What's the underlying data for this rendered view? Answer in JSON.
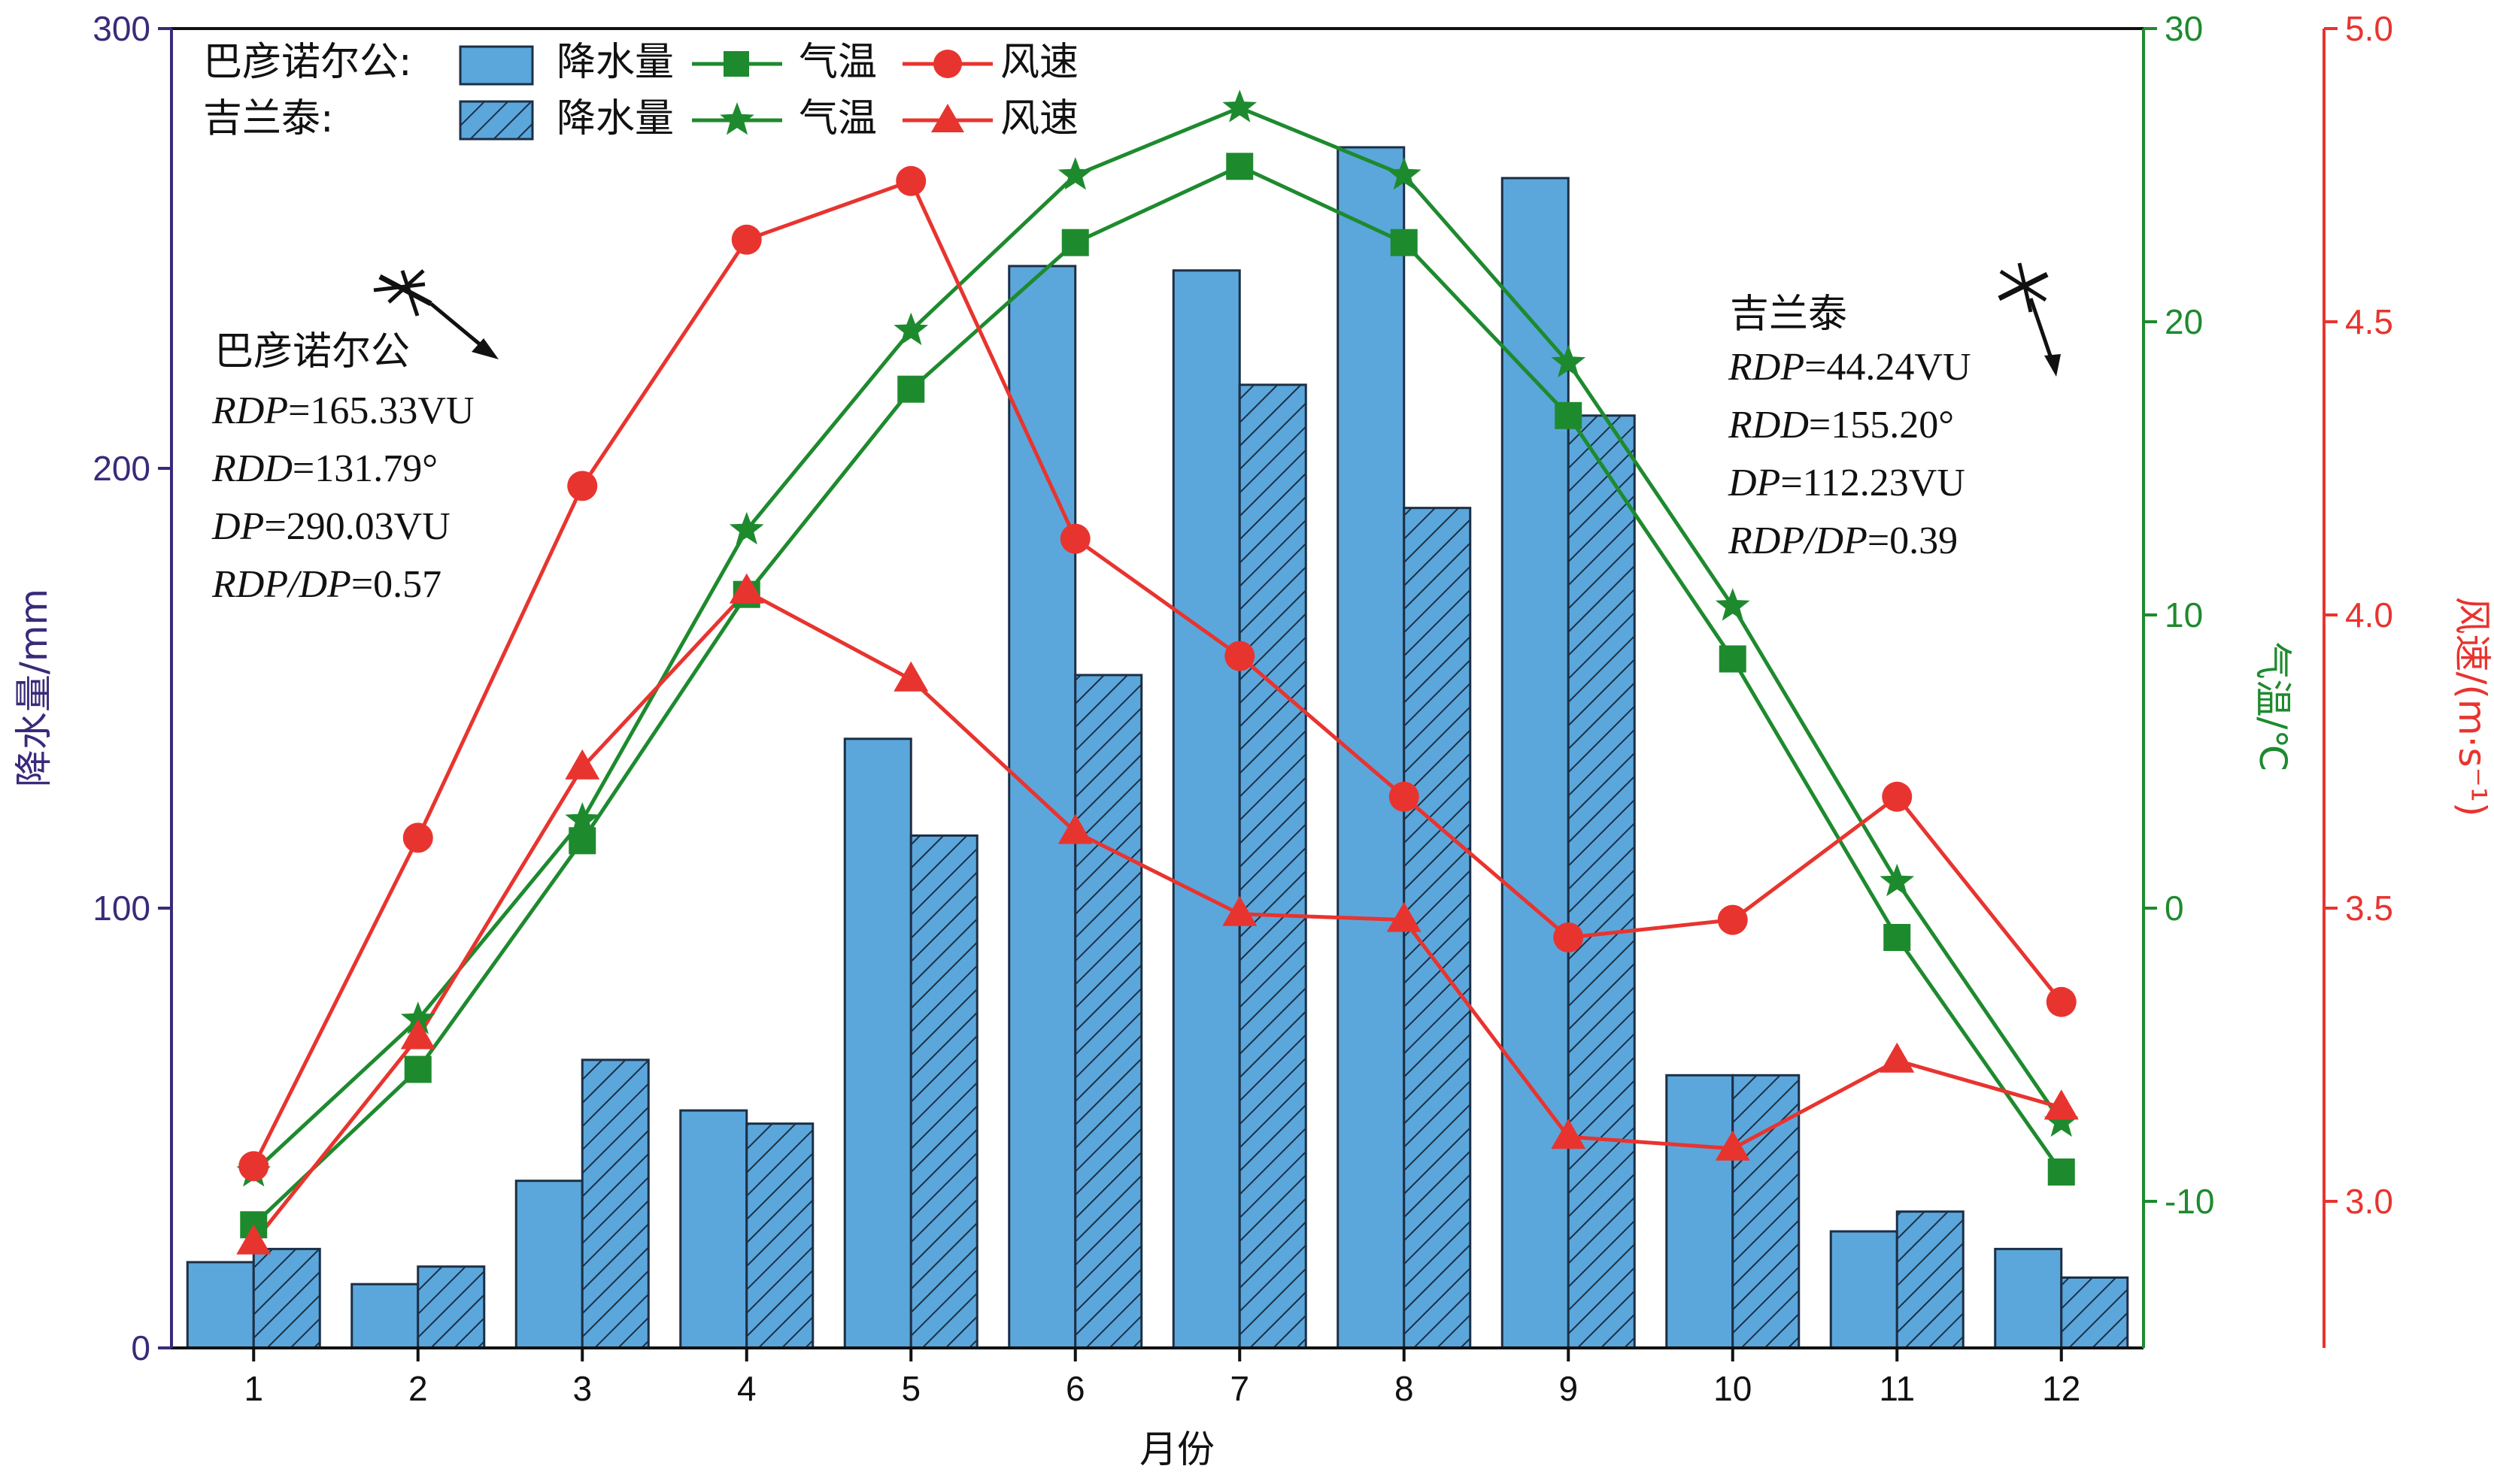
{
  "chart_data": {
    "type": "bar+line",
    "xlabel": "月份",
    "categories": [
      "1",
      "2",
      "3",
      "4",
      "5",
      "6",
      "7",
      "8",
      "9",
      "10",
      "11",
      "12"
    ],
    "colors": {
      "precip": "#5ba7dc",
      "temp": "#1e8a2e",
      "wind": "#e8342f",
      "left_axis": "#3a2a7a",
      "bar_edge": "#1c2f45"
    },
    "axes": {
      "left": {
        "label": "降水量/mm",
        "ylim": [
          0,
          300
        ],
        "ticks": [
          "0",
          "100",
          "200",
          "300"
        ],
        "tick_values": [
          0,
          100,
          200,
          300
        ]
      },
      "right1": {
        "label": "气温/℃",
        "ylim": [
          -15,
          30
        ],
        "ticks": [
          "-10",
          "0",
          "10",
          "20",
          "30"
        ],
        "tick_values": [
          -10,
          0,
          10,
          20,
          30
        ]
      },
      "right2": {
        "label": "风速/(m·s⁻¹)",
        "ylim": [
          2.75,
          5.0
        ],
        "ticks": [
          "3.0",
          "3.5",
          "4.0",
          "4.5",
          "5.0"
        ],
        "tick_values": [
          3.0,
          3.5,
          4.0,
          4.5,
          5.0
        ]
      }
    },
    "legend": {
      "rows": [
        {
          "station": "巴彦诺尔公:",
          "precip": "降水量",
          "temp": "气温",
          "wind": "风速"
        },
        {
          "station": "吉兰泰:",
          "precip": "降水量",
          "temp": "气温",
          "wind": "风速"
        }
      ]
    },
    "series": [
      {
        "station": "巴彦诺尔公",
        "kind": "precip",
        "hatch": false,
        "values": [
          19.5,
          14.5,
          38,
          54,
          138.5,
          246,
          245,
          273,
          266,
          62,
          26.5,
          22.5
        ]
      },
      {
        "station": "吉兰泰",
        "kind": "precip",
        "hatch": true,
        "values": [
          22.5,
          18.5,
          65.5,
          51,
          116.5,
          153,
          219,
          191,
          212,
          62,
          31,
          16
        ]
      },
      {
        "station": "巴彦诺尔公",
        "kind": "temp",
        "marker": "square",
        "values": [
          -10.8,
          -5.5,
          2.3,
          10.7,
          17.7,
          22.7,
          25.3,
          22.7,
          16.8,
          8.5,
          -1.0,
          -9.0
        ]
      },
      {
        "station": "吉兰泰",
        "kind": "temp",
        "marker": "star",
        "values": [
          -9.0,
          -3.8,
          3.0,
          12.9,
          19.7,
          25.0,
          27.3,
          25.0,
          18.6,
          10.3,
          0.9,
          -7.3
        ]
      },
      {
        "station": "巴彦诺尔公",
        "kind": "wind",
        "marker": "circle",
        "values": [
          3.06,
          3.62,
          4.22,
          4.64,
          4.74,
          4.13,
          3.93,
          3.69,
          3.45,
          3.48,
          3.69,
          3.34
        ]
      },
      {
        "station": "吉兰泰",
        "kind": "wind",
        "marker": "triangle",
        "values": [
          2.93,
          3.28,
          3.74,
          4.04,
          3.89,
          3.63,
          3.49,
          3.48,
          3.11,
          3.09,
          3.24,
          3.16
        ]
      }
    ],
    "annotations": [
      {
        "title": "巴彦诺尔公",
        "lines": [
          [
            "RDP",
            "=165.33VU"
          ],
          [
            "RDD",
            "=131.79°"
          ],
          [
            "DP",
            "=290.03VU"
          ],
          [
            "RDP/DP",
            "=0.57"
          ]
        ]
      },
      {
        "title": "吉兰泰",
        "lines": [
          [
            "RDP",
            "=44.24VU"
          ],
          [
            "RDD",
            "=155.20°"
          ],
          [
            "DP",
            "=112.23VU"
          ],
          [
            "RDP/DP",
            "=0.39"
          ]
        ]
      }
    ]
  }
}
